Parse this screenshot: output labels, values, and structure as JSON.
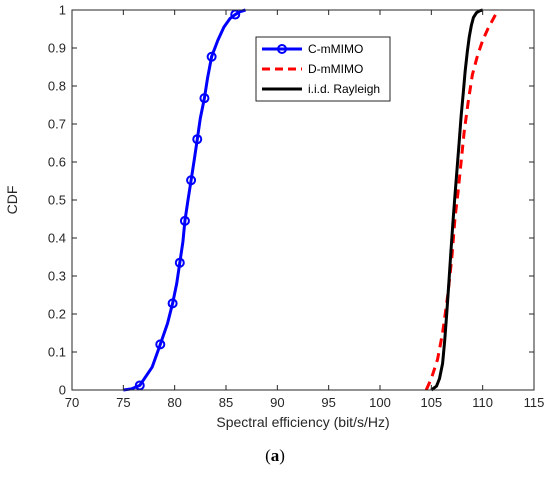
{
  "chart_data": {
    "type": "line",
    "xlabel": "Spectral efficiency (bit/s/Hz)",
    "ylabel": "CDF",
    "xlim": [
      70,
      115
    ],
    "ylim": [
      0,
      1
    ],
    "xticks": [
      70,
      75,
      80,
      85,
      90,
      95,
      100,
      105,
      110,
      115
    ],
    "yticks": [
      0,
      0.1,
      0.2,
      0.3,
      0.4,
      0.5,
      0.6,
      0.7,
      0.8,
      0.9,
      1
    ],
    "xtick_labels": [
      "70",
      "75",
      "80",
      "85",
      "90",
      "95",
      "100",
      "105",
      "110",
      "115"
    ],
    "ytick_labels": [
      "0",
      "0.1",
      "0.2",
      "0.3",
      "0.4",
      "0.5",
      "0.6",
      "0.7",
      "0.8",
      "0.9",
      "1"
    ],
    "grid": false,
    "legend_position": "top-center",
    "series": [
      {
        "name": "C-mMIMO",
        "color": "#0000ff",
        "style": "solid",
        "marker": "circle",
        "x": [
          75.0,
          75.8,
          76.6,
          77.8,
          78.6,
          79.3,
          79.8,
          80.2,
          80.5,
          80.8,
          81.0,
          81.3,
          81.6,
          81.9,
          82.2,
          82.5,
          82.9,
          83.2,
          83.6,
          84.2,
          84.8,
          85.4,
          85.9,
          86.4,
          86.9
        ],
        "y": [
          0.0,
          0.003,
          0.012,
          0.06,
          0.12,
          0.175,
          0.228,
          0.28,
          0.335,
          0.39,
          0.445,
          0.5,
          0.552,
          0.605,
          0.66,
          0.715,
          0.768,
          0.82,
          0.877,
          0.92,
          0.955,
          0.978,
          0.988,
          0.996,
          1.0
        ],
        "markers_x": [
          76.6,
          78.6,
          79.8,
          80.5,
          81.0,
          81.6,
          82.2,
          82.9,
          83.6,
          85.9
        ],
        "markers_y": [
          0.012,
          0.12,
          0.228,
          0.335,
          0.445,
          0.552,
          0.66,
          0.768,
          0.877,
          0.988
        ]
      },
      {
        "name": "D-mMIMO",
        "color": "#ff0000",
        "style": "dashed",
        "x": [
          104.5,
          105.0,
          105.6,
          106.1,
          106.6,
          107.0,
          107.3,
          107.6,
          107.9,
          108.2,
          108.6,
          109.0,
          109.5,
          110.0,
          110.5,
          111.0,
          111.5
        ],
        "y": [
          0.0,
          0.03,
          0.08,
          0.15,
          0.25,
          0.35,
          0.45,
          0.52,
          0.6,
          0.68,
          0.76,
          0.83,
          0.88,
          0.92,
          0.95,
          0.975,
          1.0
        ],
        "dash_pattern": "9,6"
      },
      {
        "name": "i.i.d. Rayleigh",
        "color": "#000000",
        "style": "solid",
        "x": [
          105.0,
          105.5,
          105.8,
          106.1,
          106.3,
          106.5,
          106.7,
          106.9,
          107.1,
          107.3,
          107.5,
          107.7,
          107.9,
          108.1,
          108.3,
          108.5,
          108.7,
          108.9,
          109.1,
          109.4,
          109.7,
          110.0
        ],
        "y": [
          0.0,
          0.01,
          0.03,
          0.07,
          0.13,
          0.2,
          0.28,
          0.36,
          0.44,
          0.51,
          0.58,
          0.65,
          0.72,
          0.78,
          0.84,
          0.89,
          0.93,
          0.96,
          0.98,
          0.993,
          0.998,
          1.0
        ]
      }
    ]
  },
  "caption": {
    "open": "(",
    "letter": "a",
    "close": ")"
  }
}
